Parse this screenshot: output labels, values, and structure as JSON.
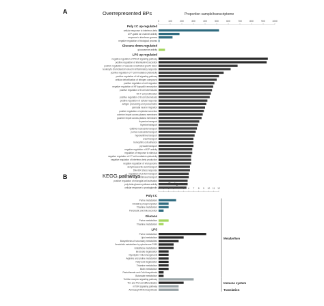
{
  "chart_data": [
    {
      "type": "bar",
      "panel": "A",
      "title": "Overrepresented BPs",
      "axis_title": "Proportion sample/transcriptome",
      "xlim": [
        0,
        1000
      ],
      "ticks": [
        0,
        100,
        200,
        300,
        400,
        500,
        600,
        700,
        800,
        900,
        1000
      ],
      "groups": [
        {
          "name": "Poly I:C up-regulated",
          "terms": [
            {
              "label": "cellular response to interferon-beta",
              "value": 520,
              "color": "#2f6b7f"
            },
            {
              "label": "ATP-gated ion channel activity",
              "value": 180,
              "color": "#2f6b7f"
            },
            {
              "label": "response to interferon-gamma",
              "value": 120,
              "color": "#2f6b7f"
            },
            {
              "label": "negative regulation of biological process",
              "value": 8,
              "color": "#2f6b7f"
            }
          ]
        },
        {
          "name": "Glucans down-regulated",
          "terms": [
            {
              "label": "glucosamine activity",
              "value": 55,
              "color": "#a4d65e"
            }
          ]
        },
        {
          "name": "LPS up-regulated",
          "terms": [
            {
              "label": "negative regulation of PDGF signaling pathway",
              "value": 940,
              "color": "#2b2b2b"
            },
            {
              "label": "positive regulation of interleukin-6 secretion",
              "value": 930,
              "color": "#2b2b2b"
            },
            {
              "label": "positive regulation of vascular endothelial growth factor",
              "value": 680,
              "color": "#3a3a3a"
            },
            {
              "label": "leukocyte chemotaxis involved in inflammatory response",
              "value": 620,
              "color": "#3a3a3a"
            },
            {
              "label": "positive regulation of T cell mediated cytotoxicity",
              "value": 560,
              "color": "#3a3a3a"
            },
            {
              "label": "positive regulation of toll signaling pathway",
              "value": 520,
              "color": "#3a3a3a"
            },
            {
              "label": "cellular detoxification of nitrogen compound",
              "value": 500,
              "color": "#3a3a3a"
            },
            {
              "label": "positive regulation of cell migration",
              "value": 480,
              "color": "#3a3a3a"
            },
            {
              "label": "negative regulation of NF-kappaB transcription",
              "value": 470,
              "color": "#3a3a3a"
            },
            {
              "label": "positive regulation of B cell chemotaxis",
              "value": 460,
              "color": "#3a3a3a"
            },
            {
              "label": "NK T cell proliferation",
              "value": 450,
              "color": "#3a3a3a"
            },
            {
              "label": "positive regulation of B cell chemotaxis",
              "value": 440,
              "color": "#3a3a3a"
            },
            {
              "label": "positive regulation of cellular response",
              "value": 420,
              "color": "#3a3a3a"
            },
            {
              "label": "antigen processing and presentation",
              "value": 410,
              "color": "#3a3a3a"
            },
            {
              "label": "perinatal neuron migration",
              "value": 400,
              "color": "#3a3a3a"
            },
            {
              "label": "positive regulation of cytokine secretion",
              "value": 390,
              "color": "#3a3a3a"
            },
            {
              "label": "adenine import across plasma membrane",
              "value": 380,
              "color": "#3a3a3a"
            },
            {
              "label": "guanine import across plasma membrane",
              "value": 370,
              "color": "#3a3a3a"
            },
            {
              "label": "thyamine transport",
              "value": 350,
              "color": "#3a3a3a"
            },
            {
              "label": "thymine transport",
              "value": 340,
              "color": "#3a3a3a"
            },
            {
              "label": "cytidine nucleoside transport",
              "value": 330,
              "color": "#3a3a3a"
            },
            {
              "label": "purine nucleoside transport",
              "value": 320,
              "color": "#3a3a3a"
            },
            {
              "label": "hypoxanthine transport",
              "value": 310,
              "color": "#3a3a3a"
            },
            {
              "label": "uracil transport",
              "value": 300,
              "color": "#3a3a3a"
            },
            {
              "label": "hemophilic cell adhesion",
              "value": 300,
              "color": "#3a3a3a"
            },
            {
              "label": "pyruvate transport",
              "value": 300,
              "color": "#3a3a3a"
            },
            {
              "label": "negative regulation of ATP activity",
              "value": 290,
              "color": "#3a3a3a"
            },
            {
              "label": "regulation of response to stimulus",
              "value": 290,
              "color": "#3a3a3a"
            },
            {
              "label": "negative regulation of 2 T cell mediated cytotoxicity",
              "value": 280,
              "color": "#3a3a3a"
            },
            {
              "label": "negative regulation of interferon-beta production",
              "value": 280,
              "color": "#3a3a3a"
            },
            {
              "label": "negative regulation of viral genome",
              "value": 280,
              "color": "#3a3a3a"
            },
            {
              "label": "dehydroascorbic acid transport",
              "value": 270,
              "color": "#3a3a3a"
            },
            {
              "label": "DNA ER stress response",
              "value": 270,
              "color": "#3a3a3a"
            },
            {
              "label": "regulation of protein transport",
              "value": 260,
              "color": "#3a3a3a"
            },
            {
              "label": "L-ascorbic acid transmembrane transport",
              "value": 260,
              "color": "#3a3a3a"
            },
            {
              "label": "positive regulation of microglial cell activation",
              "value": 250,
              "color": "#3a3a3a"
            },
            {
              "label": "poly-beta-glucan synthase activity",
              "value": 250,
              "color": "#3a3a3a"
            },
            {
              "label": "cellular response to prostaglandin",
              "value": 240,
              "color": "#3a3a3a"
            }
          ]
        }
      ]
    },
    {
      "type": "bar",
      "panel": "B",
      "title": "KEGG pathways",
      "axis_title": "Contig count",
      "xlim": [
        0,
        12
      ],
      "ticks": [
        0,
        1,
        2,
        3,
        4,
        5,
        6,
        7,
        8,
        9,
        10,
        11,
        12
      ],
      "groups": [
        {
          "name": "Poly I:C",
          "terms": [
            {
              "label": "Purine metabolism",
              "value": 3.5,
              "color": "#2f6b7f"
            },
            {
              "label": "Oxidative phosphorylation",
              "value": 2,
              "color": "#2f6b7f"
            },
            {
              "label": "Thiamine metabolism",
              "value": 2,
              "color": "#2f6b7f"
            },
            {
              "label": "Pancreatic and bile secretion",
              "value": 1,
              "color": "#2f6b7f"
            }
          ]
        },
        {
          "name": "Glucans",
          "terms": [
            {
              "label": "Purine metabolism",
              "value": 2,
              "color": "#a4d65e"
            },
            {
              "label": "Thiamine metabolism",
              "value": 1,
              "color": "#a4d65e"
            }
          ]
        },
        {
          "name": "LPS",
          "terms": [
            {
              "label": "Purine metabolism",
              "value": 9.5,
              "color": "#2b2b2b"
            },
            {
              "label": "Lipid metabolism",
              "value": 5,
              "color": "#2b2b2b"
            },
            {
              "label": "Biosynthesis of secondary metabolites",
              "value": 4,
              "color": "#2b2b2b"
            },
            {
              "label": "Xenobiotic metabolism by cytochrome P450",
              "value": 3,
              "color": "#2b2b2b"
            },
            {
              "label": "Glutathione metabolism",
              "value": 3,
              "color": "#2b2b2b"
            },
            {
              "label": "Benzoate degradation",
              "value": 2,
              "color": "#2b2b2b"
            },
            {
              "label": "Glycolysis / Gluconeogenesis",
              "value": 2,
              "color": "#2b2b2b"
            },
            {
              "label": "Arginine and proline metabolism",
              "value": 2,
              "color": "#2b2b2b"
            },
            {
              "label": "Fatty acid degradation",
              "value": 2,
              "color": "#2b2b2b"
            },
            {
              "label": "Thiamine metabolism",
              "value": 2,
              "color": "#2b2b2b"
            },
            {
              "label": "Biotin metabolism",
              "value": 2,
              "color": "#2b2b2b"
            },
            {
              "label": "Pantothenate and CoA biosynthesis",
              "value": 1,
              "color": "#2b2b2b"
            },
            {
              "label": "Butanoate metabolism",
              "value": 1,
              "color": "#2b2b2b"
            },
            {
              "label": "Toll-like receptor signaling pathway",
              "value": 7,
              "color": "#9aa5a8"
            },
            {
              "label": "Th1 and Th2 cell differentiation",
              "value": 5,
              "color": "#2b2b2b"
            },
            {
              "label": "mTOR signaling pathway",
              "value": 4,
              "color": "#9aa5a8"
            },
            {
              "label": "Aminoacyl-tRNA biosynthesis",
              "value": 4,
              "color": "#9aa5a8"
            }
          ]
        }
      ],
      "brackets": [
        {
          "label": "Metabolism"
        },
        {
          "label": "Immune system"
        },
        {
          "label": "Translation"
        }
      ]
    }
  ]
}
